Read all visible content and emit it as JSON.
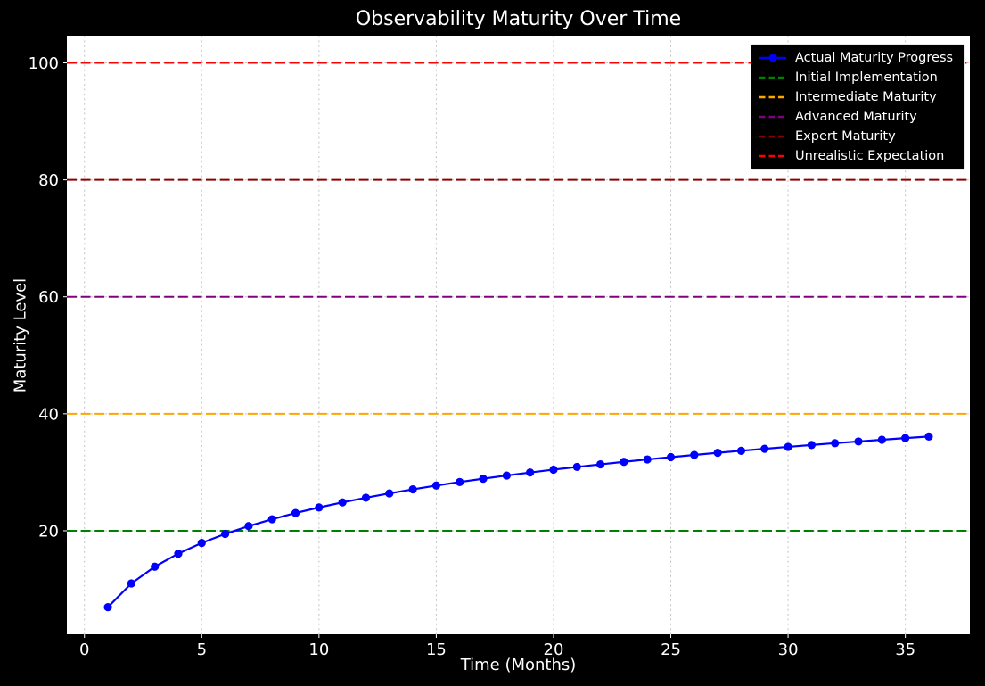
{
  "figure": {
    "background": "#000000",
    "plot_background": "#ffffff",
    "text_color": "#ffffff",
    "grid_color": "#c3c3c3"
  },
  "chart_data": {
    "type": "line",
    "title": "Observability Maturity Over Time",
    "xlabel": "Time (Months)",
    "ylabel": "Maturity Level",
    "xlim": [
      -0.75,
      37.75
    ],
    "ylim": [
      2.3,
      104.65
    ],
    "x_ticks": [
      0,
      5,
      10,
      15,
      20,
      25,
      30,
      35
    ],
    "y_ticks": [
      20,
      40,
      60,
      80,
      100
    ],
    "grid": true,
    "grid_style": "dotted",
    "legend_position": "upper right",
    "series": [
      {
        "name": "Actual Maturity Progress",
        "color": "#0000ff",
        "line_style": "solid",
        "marker": "circle",
        "x": [
          1,
          2,
          3,
          4,
          5,
          6,
          7,
          8,
          9,
          10,
          11,
          12,
          13,
          14,
          15,
          16,
          17,
          18,
          19,
          20,
          21,
          22,
          23,
          24,
          25,
          26,
          27,
          28,
          29,
          30,
          31,
          32,
          33,
          34,
          35,
          36
        ],
        "y": [
          6.93,
          10.99,
          13.86,
          16.09,
          17.92,
          19.46,
          20.79,
          21.97,
          23.03,
          23.98,
          24.85,
          25.65,
          26.39,
          27.08,
          27.73,
          28.33,
          28.9,
          29.44,
          29.96,
          30.45,
          30.91,
          31.35,
          31.78,
          32.19,
          32.58,
          32.96,
          33.32,
          33.67,
          34.01,
          34.34,
          34.66,
          34.97,
          35.26,
          35.55,
          35.84,
          36.11
        ]
      }
    ],
    "reference_lines": [
      {
        "name": "Initial Implementation",
        "value": 20,
        "color": "#008000",
        "line_style": "dashed"
      },
      {
        "name": "Intermediate Maturity",
        "value": 40,
        "color": "#ffa500",
        "line_style": "dashed"
      },
      {
        "name": "Advanced Maturity",
        "value": 60,
        "color": "#800080",
        "line_style": "dashed"
      },
      {
        "name": "Expert Maturity",
        "value": 80,
        "color": "#8b0000",
        "line_style": "dashed"
      },
      {
        "name": "Unrealistic Expectation",
        "value": 100,
        "color": "#ff0000",
        "line_style": "dashed"
      }
    ]
  },
  "legend": {
    "entries": [
      {
        "label": "Actual Maturity Progress",
        "color": "#0000ff",
        "style": "solid-marker"
      },
      {
        "label": "Initial Implementation",
        "color": "#008000",
        "style": "dashed"
      },
      {
        "label": "Intermediate Maturity",
        "color": "#ffa500",
        "style": "dashed"
      },
      {
        "label": "Advanced Maturity",
        "color": "#800080",
        "style": "dashed"
      },
      {
        "label": "Expert Maturity",
        "color": "#8b0000",
        "style": "dashed"
      },
      {
        "label": "Unrealistic Expectation",
        "color": "#ff0000",
        "style": "dashed"
      }
    ]
  }
}
